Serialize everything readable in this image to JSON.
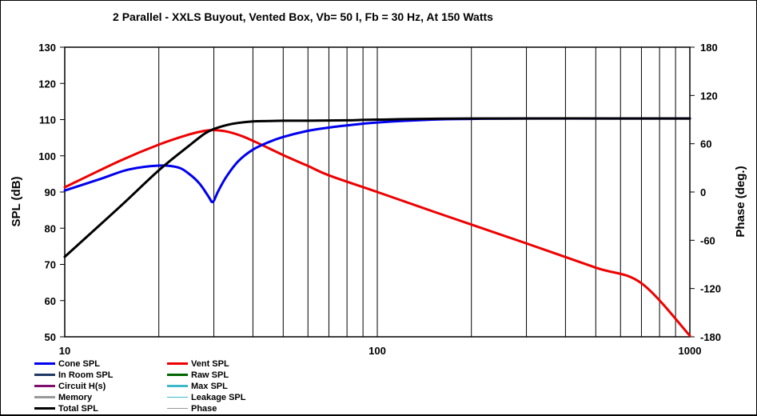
{
  "chart_data": {
    "type": "line",
    "title": "2 Parallel  - XXLS Buyout,  Vented Box, Vb= 50 l,  Fb = 30 Hz,  At 150 Watts",
    "xlabel": "",
    "ylabel": "SPL (dB)",
    "y2label": "Phase (deg.)",
    "xscale": "log",
    "xlim": [
      10,
      1000
    ],
    "ylim": [
      50,
      130
    ],
    "y2lim": [
      -180,
      180
    ],
    "x_ticks": [
      "10",
      "100",
      "1000"
    ],
    "y_ticks": [
      "130",
      "120",
      "110",
      "100",
      "90",
      "80",
      "70",
      "60",
      "50"
    ],
    "y2_ticks": [
      "180",
      "120",
      "60",
      "0",
      "-60",
      "-120",
      "-180"
    ],
    "grid": "vertical",
    "series": [
      {
        "name": "Vent SPL",
        "color": "#ee0000",
        "x": [
          10,
          15,
          20,
          25,
          28,
          30,
          33,
          37,
          42,
          50,
          60,
          70,
          100,
          150,
          200,
          300,
          500,
          700,
          1000
        ],
        "y": [
          91.3,
          98.6,
          103.1,
          105.9,
          106.9,
          107.1,
          106.7,
          105.4,
          103.3,
          100.2,
          97.2,
          94.6,
          90.0,
          84.7,
          81.0,
          75.8,
          69.1,
          64.8,
          50.3
        ]
      },
      {
        "name": "Cone SPL",
        "color": "#0000ee",
        "x": [
          10,
          13,
          16,
          20,
          23,
          25,
          27,
          29,
          29.5,
          30,
          31,
          33,
          36,
          40,
          45,
          50,
          60,
          70,
          80,
          100,
          150,
          200,
          300,
          1000
        ],
        "y": [
          90.4,
          93.6,
          96.2,
          97.3,
          96.8,
          95.0,
          92.3,
          88.4,
          87.3,
          87.6,
          90.3,
          94.4,
          98.6,
          101.7,
          103.8,
          105.2,
          106.9,
          107.8,
          108.4,
          109.2,
          110.0,
          110.2,
          110.3,
          110.3
        ]
      },
      {
        "name": "Total SPL",
        "color": "#000000",
        "x": [
          10,
          15,
          20,
          25,
          28,
          30,
          33,
          36,
          40,
          45,
          50,
          60,
          80,
          100,
          200,
          1000
        ],
        "y": [
          72.1,
          85.9,
          96.0,
          102.8,
          106.1,
          107.4,
          108.5,
          109.1,
          109.5,
          109.6,
          109.7,
          109.7,
          109.8,
          110.0,
          110.3,
          110.3
        ]
      }
    ]
  },
  "legend": {
    "items": [
      {
        "label": "Cone SPL",
        "color": "#0000ee",
        "weight": 3
      },
      {
        "label": "Vent SPL",
        "color": "#ee0000",
        "weight": 3
      },
      {
        "label": "In Room SPL",
        "color": "#1f3864",
        "weight": 3
      },
      {
        "label": "Raw SPL",
        "color": "#006600",
        "weight": 3
      },
      {
        "label": "Circuit H(s)",
        "color": "#7f0f6f",
        "weight": 3
      },
      {
        "label": "Max SPL",
        "color": "#3cb8c8",
        "weight": 3
      },
      {
        "label": "Memory",
        "color": "#999999",
        "weight": 3
      },
      {
        "label": "Leakage SPL",
        "color": "#3cb8c8",
        "weight": 1
      },
      {
        "label": "Total SPL",
        "color": "#000000",
        "weight": 3
      },
      {
        "label": "Phase",
        "color": "#999999",
        "weight": 1
      }
    ]
  }
}
